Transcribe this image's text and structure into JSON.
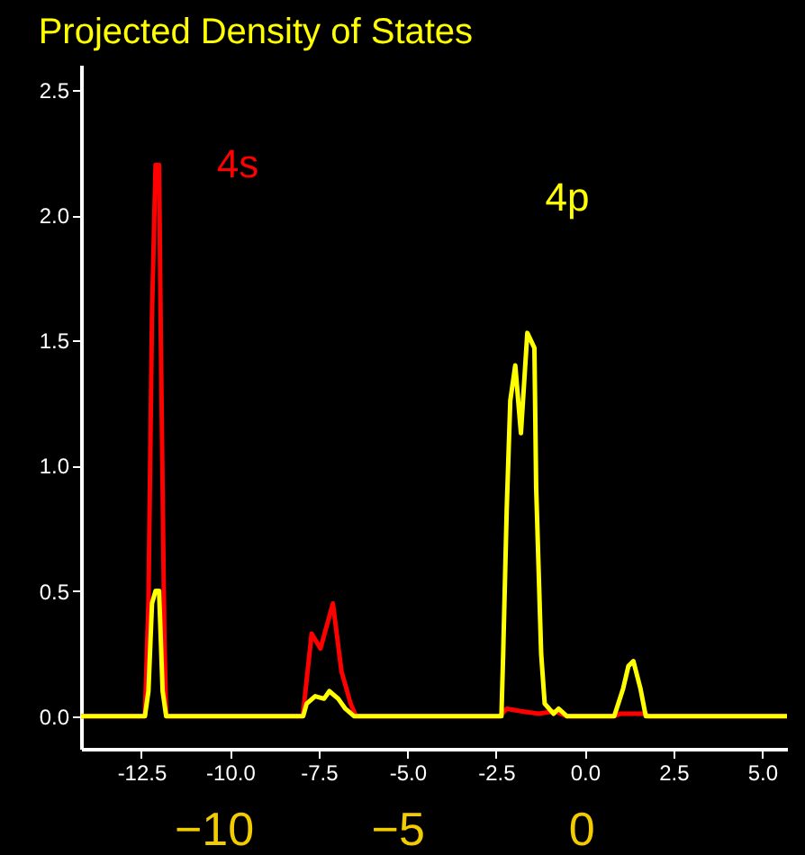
{
  "chart_data": {
    "type": "line",
    "title": "Projected Density of States",
    "xlim": [
      -14.2,
      5.7
    ],
    "ylim": [
      -0.13,
      2.6
    ],
    "xticks": [
      -12.5,
      {
        "value": -10,
        "label": "-10.0"
      },
      -7.5,
      {
        "value": -5,
        "label": "-5.0"
      },
      -2.5,
      {
        "value": 0,
        "label": "0.0"
      },
      2.5,
      {
        "value": 5,
        "label": "5.0"
      }
    ],
    "yticks": [
      {
        "value": 0,
        "label": "0.0"
      },
      0.5,
      {
        "value": 1,
        "label": "1.0"
      },
      1.5,
      {
        "value": 2,
        "label": "2.0"
      },
      2.5
    ],
    "x2lim": [
      -13.6,
      5.6
    ],
    "x2ticks": [
      {
        "value": -10,
        "label": "−10"
      },
      {
        "value": -5,
        "label": "−5"
      },
      0
    ],
    "legend": false,
    "grid": false,
    "series": [
      {
        "name": "4s",
        "color": "#ff0000",
        "x": [
          -14.2,
          -12.4,
          -12.3,
          -12.2,
          -12.1,
          -12.0,
          -11.95,
          -11.85,
          -11.8,
          -7.95,
          -7.7,
          -7.45,
          -7.1,
          -6.86,
          -6.6,
          -6.45,
          -2.4,
          -2.2,
          -1.8,
          -1.3,
          -0.85,
          -0.5,
          0.8,
          1.0,
          1.7,
          1.8,
          5.7
        ],
        "values": [
          0,
          0,
          0.45,
          1.6,
          2.2,
          2.2,
          1.5,
          0.3,
          0,
          0,
          0.33,
          0.27,
          0.45,
          0.18,
          0.05,
          0,
          0,
          0.03,
          0.02,
          0.01,
          0.02,
          0,
          0,
          0.01,
          0.01,
          0,
          0
        ]
      },
      {
        "name": "4p",
        "color": "#ffff00",
        "x": [
          -14.2,
          -12.4,
          -12.3,
          -12.2,
          -12.1,
          -12.0,
          -11.95,
          -11.9,
          -11.8,
          -7.94,
          -7.84,
          -7.6,
          -7.35,
          -7.2,
          -6.95,
          -6.75,
          -6.5,
          -2.35,
          -2.3,
          -2.2,
          -2.1,
          -1.96,
          -1.8,
          -1.62,
          -1.42,
          -1.37,
          -1.23,
          -1.13,
          -0.88,
          -0.74,
          -0.5,
          0.83,
          1.08,
          1.23,
          1.37,
          1.57,
          1.72,
          5.7
        ],
        "values": [
          0,
          0,
          0.1,
          0.45,
          0.5,
          0.5,
          0.3,
          0.1,
          0,
          0,
          0.05,
          0.08,
          0.07,
          0.1,
          0.07,
          0.03,
          0,
          0,
          0.25,
          0.83,
          1.26,
          1.4,
          1.13,
          1.53,
          1.47,
          0.91,
          0.25,
          0.05,
          0.01,
          0.03,
          0,
          0,
          0.11,
          0.2,
          0.22,
          0.11,
          0,
          0
        ]
      }
    ]
  }
}
